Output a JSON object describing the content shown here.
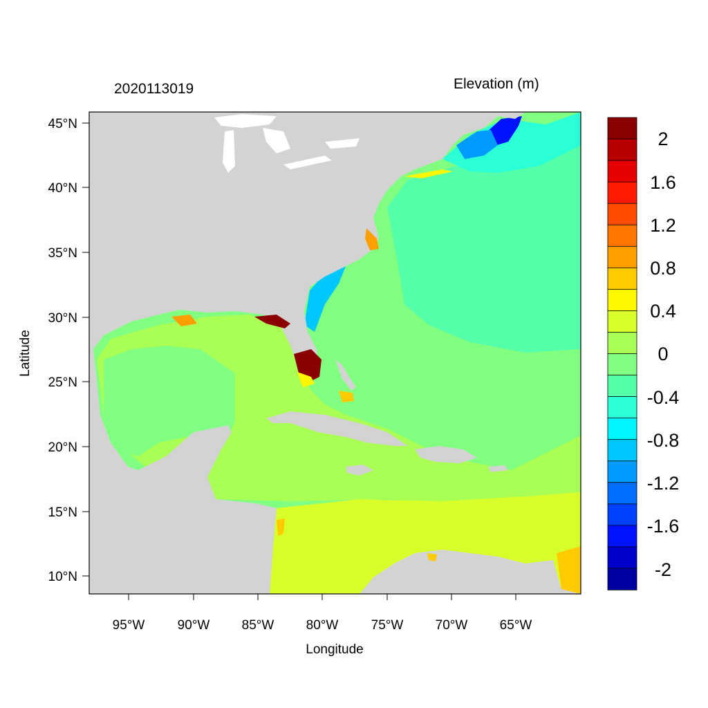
{
  "title_left": "2020113019",
  "title_right": "Elevation (m)",
  "xlabel": "Longitude",
  "ylabel": "Latitude",
  "lon_ticks": [
    "95°W",
    "90°W",
    "85°W",
    "80°W",
    "75°W",
    "70°W",
    "65°W"
  ],
  "lat_ticks": [
    "45°N",
    "40°N",
    "35°N",
    "30°N",
    "25°N",
    "20°N",
    "15°N",
    "10°N"
  ],
  "colorbar": {
    "labels": [
      "2",
      "1.6",
      "1.2",
      "0.8",
      "0.4",
      "0",
      "-0.4",
      "-0.8",
      "-1.2",
      "-1.6",
      "-2"
    ],
    "colors": [
      "#8b0000",
      "#b80000",
      "#e60000",
      "#ff1a00",
      "#ff4b00",
      "#ff7500",
      "#ff9e00",
      "#ffcb00",
      "#fff700",
      "#d9ff2a",
      "#aaff55",
      "#80ff80",
      "#55ffaa",
      "#2affd5",
      "#00f6ff",
      "#00c8ff",
      "#009bff",
      "#006eff",
      "#0040ff",
      "#0012ff",
      "#0000cc",
      "#0000a0"
    ]
  },
  "colors": {
    "land": "#d3d3d3",
    "ocean_background": "#80ff80"
  }
}
